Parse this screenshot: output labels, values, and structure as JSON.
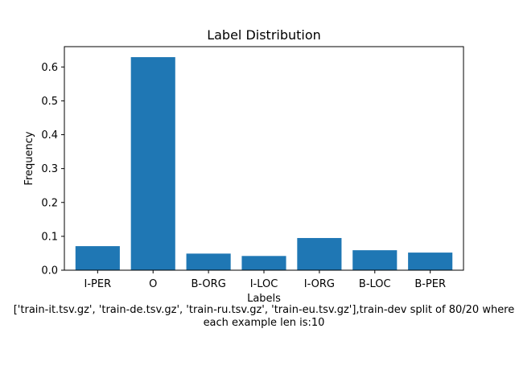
{
  "chart_data": {
    "type": "bar",
    "title": "Label Distribution",
    "xlabel": "Labels",
    "ylabel": "Frequency",
    "caption_line1": "['train-it.tsv.gz', 'train-de.tsv.gz', 'train-ru.tsv.gz', 'train-eu.tsv.gz'],train-dev split of 80/20 where",
    "caption_line2": "each example len is:10",
    "categories": [
      "I-PER",
      "O",
      "B-ORG",
      "I-LOC",
      "I-ORG",
      "B-LOC",
      "B-PER"
    ],
    "values": [
      0.071,
      0.629,
      0.049,
      0.042,
      0.095,
      0.059,
      0.052
    ],
    "yticks": [
      0.0,
      0.1,
      0.2,
      0.3,
      0.4,
      0.5,
      0.6
    ],
    "ytick_labels": [
      "0.0",
      "0.1",
      "0.2",
      "0.3",
      "0.4",
      "0.5",
      "0.6"
    ],
    "ylim": [
      0,
      0.66
    ],
    "grid": false,
    "bar_color": "#1f77b4"
  }
}
